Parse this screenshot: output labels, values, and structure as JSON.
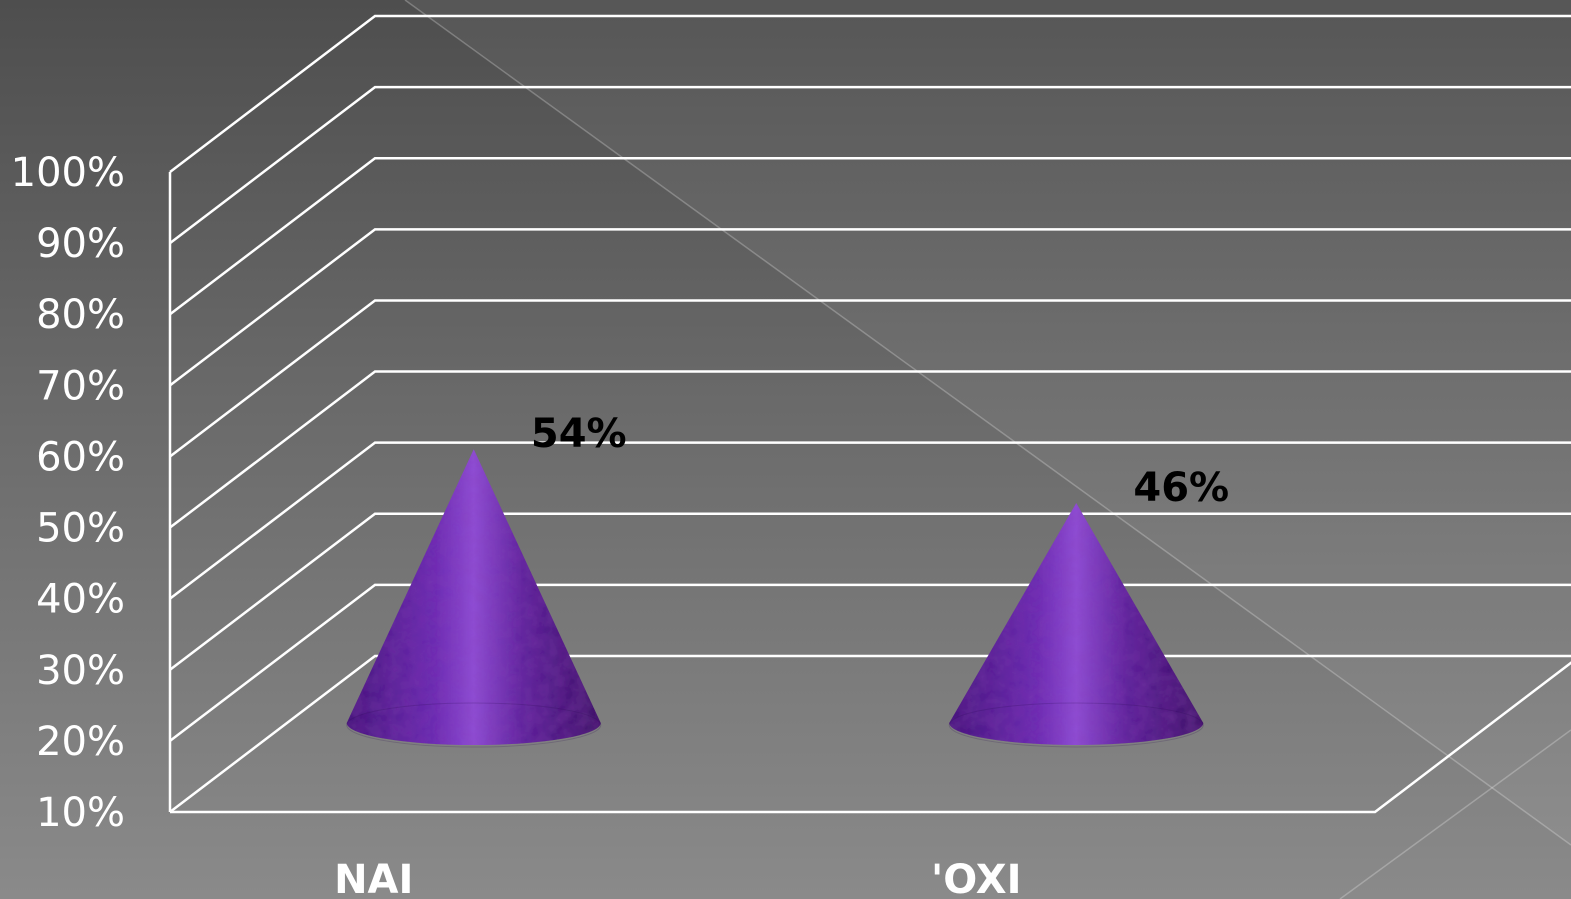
{
  "chart_data": {
    "type": "bar",
    "bar_shape": "cone",
    "projection": "3d",
    "categories": [
      "NAI",
      "'OXI"
    ],
    "series": [
      {
        "values": [
          54,
          46
        ],
        "data_labels": [
          "54%",
          "46%"
        ]
      }
    ],
    "ylim": [
      10,
      100
    ],
    "y_ticks": [
      "10%",
      "20%",
      "30%",
      "40%",
      "50%",
      "60%",
      "70%",
      "80%",
      "90%",
      "100%"
    ],
    "grid": true,
    "legend": "none",
    "colors": {
      "cone": "#6a2bb3",
      "cone_dark": "#3f1478",
      "cone_light": "#8f4fd6",
      "gridline": "#ffffff",
      "tick_text": "#ffffff",
      "data_label_text": "#000000",
      "category_text": "#ffffff"
    }
  }
}
